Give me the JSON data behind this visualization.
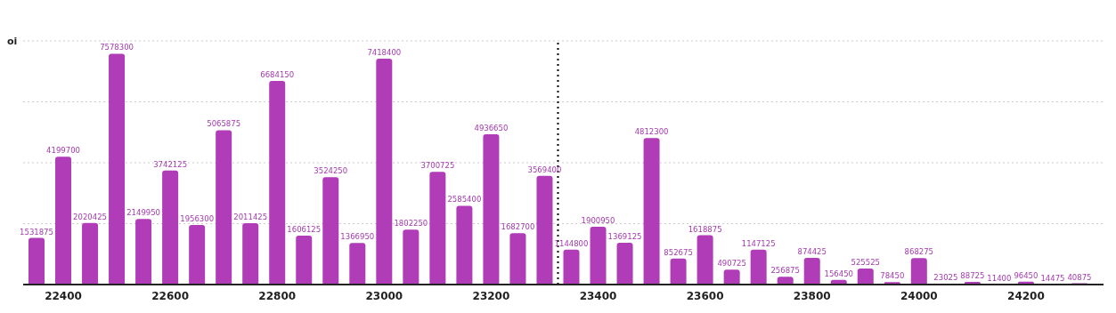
{
  "chart_data": {
    "type": "bar",
    "ylabel": "oi",
    "x": [
      22350,
      22400,
      22450,
      22500,
      22550,
      22600,
      22650,
      22700,
      22750,
      22800,
      22850,
      22900,
      22950,
      23000,
      23050,
      23100,
      23150,
      23200,
      23250,
      23300,
      23350,
      23400,
      23450,
      23500,
      23550,
      23600,
      23650,
      23700,
      23750,
      23800,
      23850,
      23900,
      23950,
      24000,
      24050,
      24100,
      24150,
      24200,
      24250,
      24300
    ],
    "values": [
      1531875,
      4199700,
      2020425,
      7578300,
      2149950,
      3742125,
      1956300,
      5065875,
      2011425,
      6684150,
      1606125,
      3524250,
      1366950,
      7418400,
      1802250,
      3700725,
      2585400,
      4936650,
      1682700,
      3569400,
      1144800,
      1900950,
      1369125,
      4812300,
      852675,
      1618875,
      490725,
      1147125,
      256875,
      874425,
      156450,
      525525,
      78450,
      868275,
      23025,
      88725,
      11400,
      96450,
      14475,
      40875
    ],
    "color": "#b03cb8",
    "data_labels": true,
    "xlim": [
      22325,
      24345
    ],
    "xticks": [
      22400,
      22600,
      22800,
      23000,
      23200,
      23400,
      23600,
      23800,
      24000,
      24200
    ],
    "ylim": [
      0,
      8000000
    ],
    "yticks": [
      {
        "value": 0,
        "label": null
      },
      {
        "value": 2000000,
        "label": null
      },
      {
        "value": 4000000,
        "label": null
      },
      {
        "value": 6000000,
        "label": null
      }
    ],
    "tick_labels": "x",
    "grid": "y",
    "ref_lines": [
      {
        "axis": "x",
        "value": 23325,
        "color": "#000000",
        "line_style": "dotted"
      }
    ]
  }
}
